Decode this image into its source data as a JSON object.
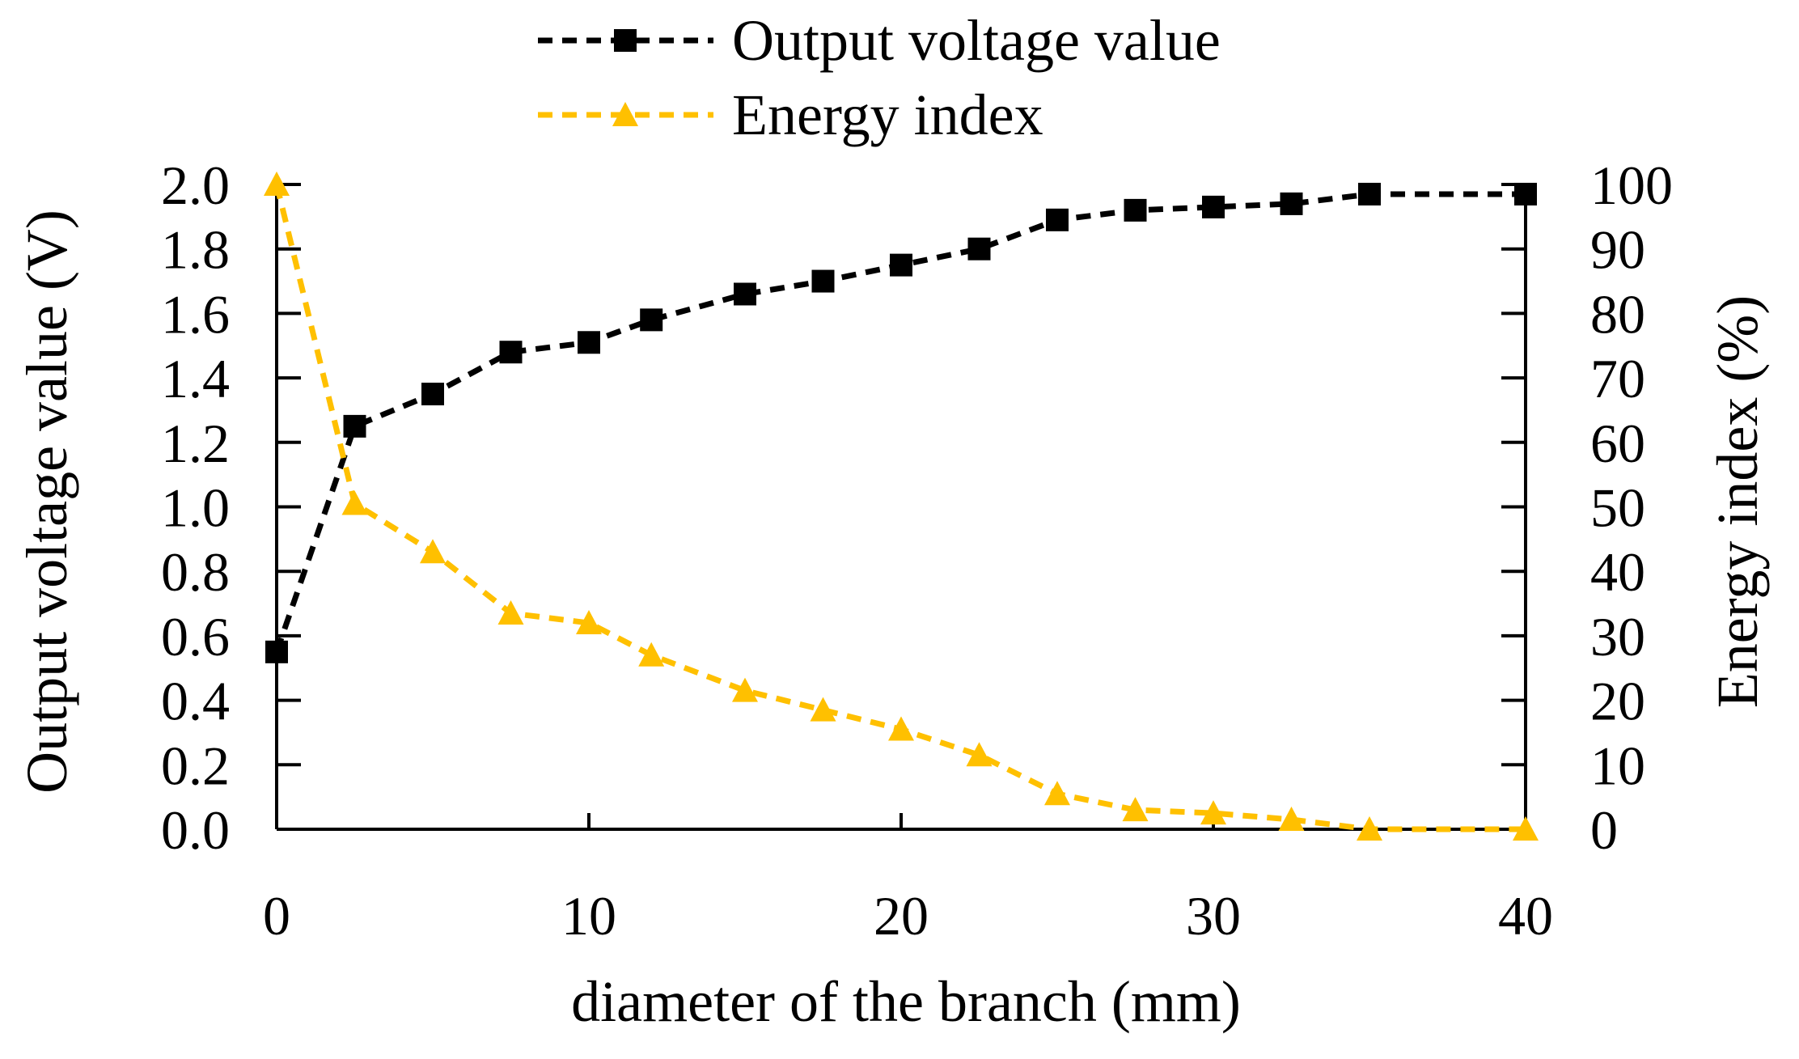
{
  "chart_data": {
    "type": "line",
    "title": "",
    "xlabel": "diameter of the branch (mm)",
    "ylabel_left": "Output voltage value (V)",
    "ylabel_right": "Energy index (%)",
    "xlim": [
      0,
      40
    ],
    "ylim_left": [
      0,
      2.0
    ],
    "ylim_right": [
      0,
      100
    ],
    "x_ticks": [
      "0",
      "10",
      "20",
      "30",
      "40"
    ],
    "y_left_ticks": [
      "0.0",
      "0.2",
      "0.4",
      "0.6",
      "0.8",
      "1.0",
      "1.2",
      "1.4",
      "1.6",
      "1.8",
      "2.0"
    ],
    "y_right_ticks": [
      "0",
      "10",
      "20",
      "30",
      "40",
      "50",
      "60",
      "70",
      "80",
      "90",
      "100"
    ],
    "grid": false,
    "legend_position": "top-center",
    "series": [
      {
        "name": "Output voltage value",
        "axis": "left",
        "color": "#000000",
        "marker": "square",
        "line_style": "dashed",
        "x": [
          0,
          2.5,
          5,
          7.5,
          10,
          12,
          15,
          17.5,
          20,
          22.5,
          25,
          27.5,
          30,
          32.5,
          35,
          40
        ],
        "values": [
          0.55,
          1.25,
          1.35,
          1.48,
          1.51,
          1.58,
          1.66,
          1.7,
          1.75,
          1.8,
          1.89,
          1.92,
          1.93,
          1.94,
          1.97,
          1.97
        ]
      },
      {
        "name": "Energy index",
        "axis": "right",
        "color": "#FFC000",
        "marker": "triangle",
        "line_style": "dashed",
        "x": [
          0,
          2.5,
          5,
          7.5,
          10,
          12,
          15,
          17.5,
          20,
          22.5,
          25,
          27.5,
          30,
          32.5,
          35,
          40
        ],
        "values": [
          100,
          50.5,
          43,
          33.5,
          32,
          27,
          21.5,
          18.5,
          15.5,
          11.5,
          5.5,
          3,
          2.5,
          1.5,
          0,
          0
        ]
      }
    ]
  }
}
